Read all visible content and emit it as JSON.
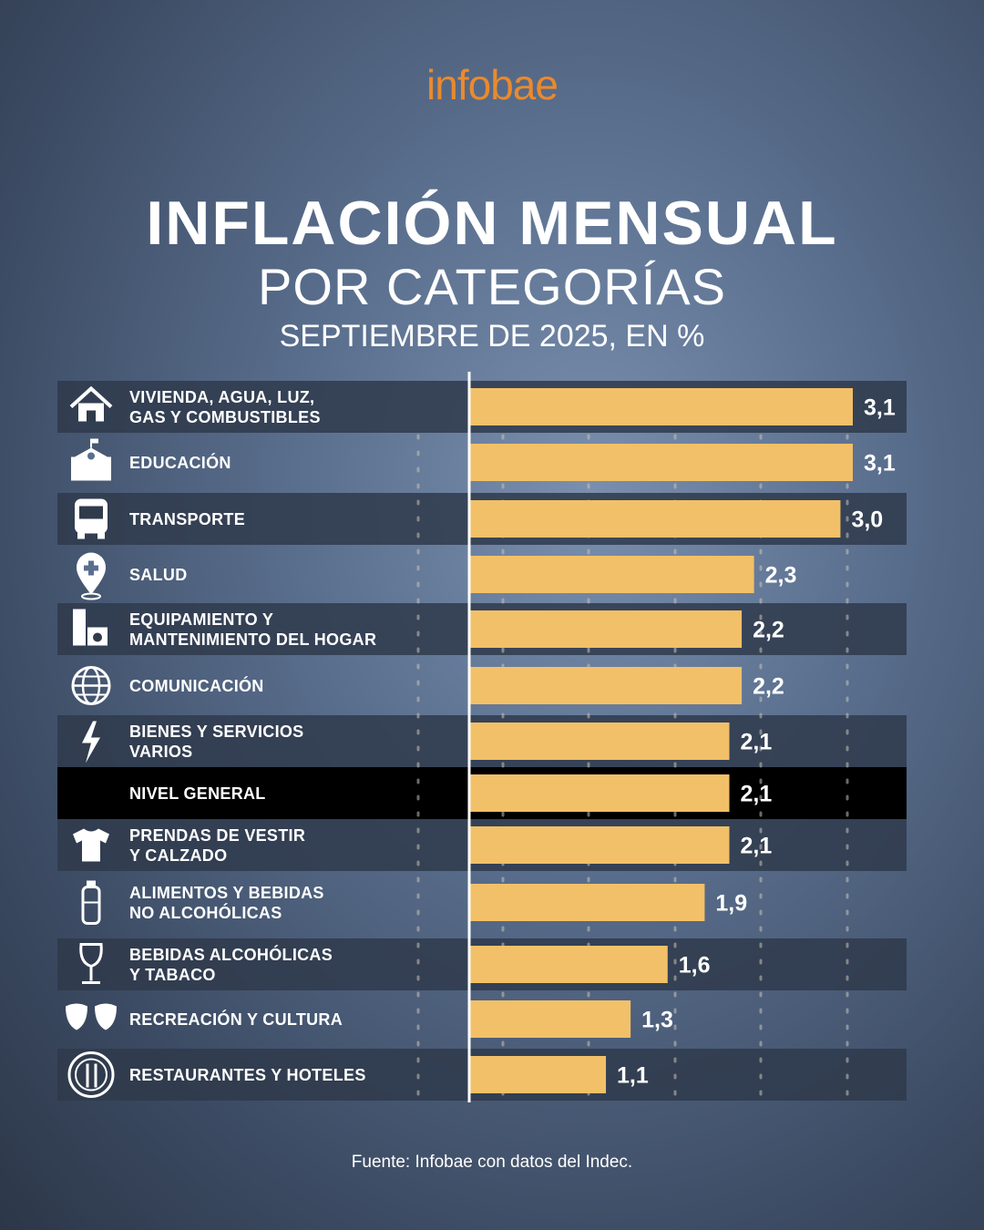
{
  "brand": "infobae",
  "title": "INFLACIÓN MENSUAL",
  "subtitle": "POR CATEGORÍAS",
  "period": "SEPTIEMBRE DE 2025, EN %",
  "source": "Fuente: Infobae con datos del Indec.",
  "colors": {
    "bar": "#f2c068",
    "brand": "#e98a2e",
    "row_dark": "#2f3a4b",
    "row_highlight": "#000000"
  },
  "chart_data": {
    "type": "bar",
    "orientation": "horizontal",
    "title": "INFLACIÓN MENSUAL POR CATEGORÍAS",
    "subtitle": "SEPTIEMBRE DE 2025, EN %",
    "xlim": [
      0,
      3.1
    ],
    "categories": [
      {
        "line1": "VIVIENDA, AGUA, LUZ,",
        "line2": "GAS Y COMBUSTIBLES",
        "icon": "house-icon"
      },
      {
        "line1": "EDUCACIÓN",
        "line2": "",
        "icon": "school-icon"
      },
      {
        "line1": "TRANSPORTE",
        "line2": "",
        "icon": "bus-icon"
      },
      {
        "line1": "SALUD",
        "line2": "",
        "icon": "health-pin-icon"
      },
      {
        "line1": "EQUIPAMIENTO Y",
        "line2": "MANTENIMIENTO DEL HOGAR",
        "icon": "appliances-icon"
      },
      {
        "line1": "COMUNICACIÓN",
        "line2": "",
        "icon": "globe-icon"
      },
      {
        "line1": "BIENES Y SERVICIOS",
        "line2": "VARIOS",
        "icon": "lightning-icon"
      },
      {
        "line1": "NIVEL GENERAL",
        "line2": "",
        "icon": ""
      },
      {
        "line1": "PRENDAS DE VESTIR",
        "line2": "Y CALZADO",
        "icon": "tshirt-icon"
      },
      {
        "line1": "ALIMENTOS Y BEBIDAS",
        "line2": "NO ALCOHÓLICAS",
        "icon": "bottle-icon"
      },
      {
        "line1": "BEBIDAS ALCOHÓLICAS",
        "line2": "Y TABACO",
        "icon": "wine-glass-icon"
      },
      {
        "line1": "RECREACIÓN Y CULTURA",
        "line2": "",
        "icon": "theater-masks-icon"
      },
      {
        "line1": "RESTAURANTES Y HOTELES",
        "line2": "",
        "icon": "cutlery-icon"
      }
    ],
    "values": [
      3.1,
      3.1,
      3.0,
      2.3,
      2.2,
      2.2,
      2.1,
      2.1,
      2.1,
      1.9,
      1.6,
      1.3,
      1.1
    ],
    "value_labels": [
      "3,1",
      "3,1",
      "3,0",
      "2,3",
      "2,2",
      "2,2",
      "2,1",
      "2,1",
      "2,1",
      "1,9",
      "1,6",
      "1,3",
      "1,1"
    ],
    "highlight": "NIVEL GENERAL"
  }
}
